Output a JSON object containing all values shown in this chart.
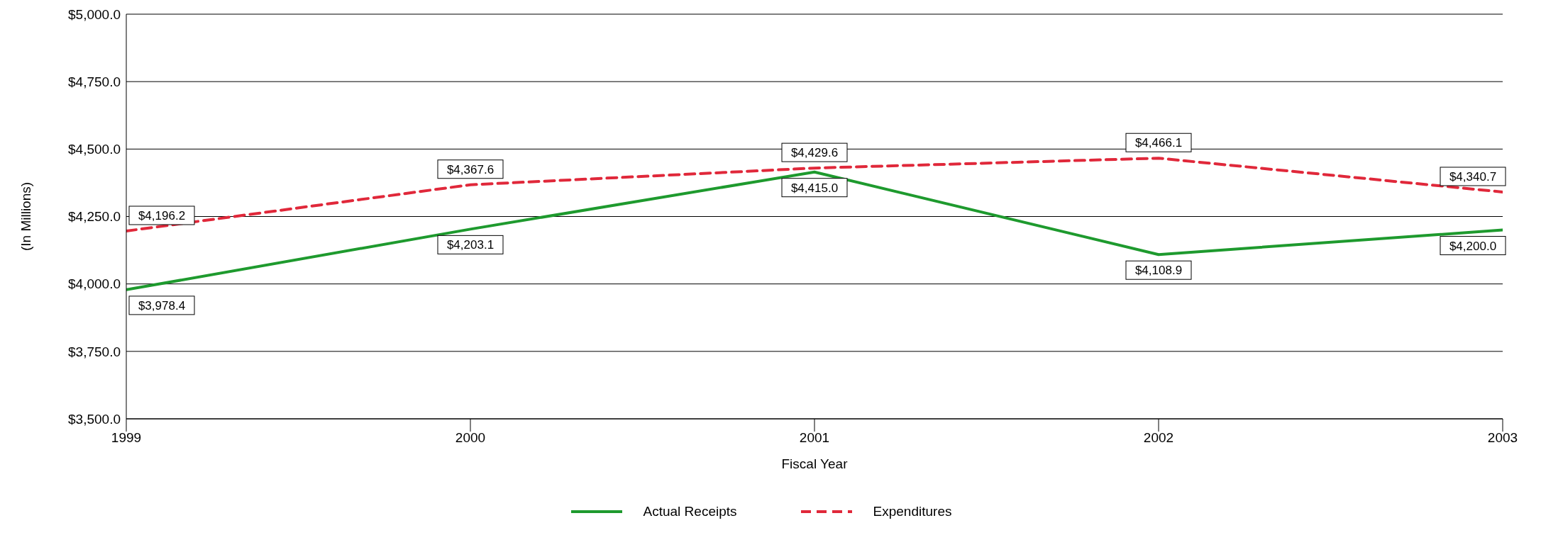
{
  "chart_data": {
    "type": "line",
    "xlabel": "Fiscal Year",
    "ylabel": "(In Millions)",
    "x": [
      1999,
      2000,
      2001,
      2002,
      2003
    ],
    "xlim": [
      1999,
      2003
    ],
    "xticks": [
      1999,
      2000,
      2001,
      2002,
      2003
    ],
    "ylim": [
      3500,
      5000
    ],
    "yticks": [
      {
        "value": 3500,
        "label": "$3,500.0"
      },
      {
        "value": 3750,
        "label": "$3,750.0"
      },
      {
        "value": 4000,
        "label": "$4,000.0"
      },
      {
        "value": 4250,
        "label": "$4,250.0"
      },
      {
        "value": 4500,
        "label": "$4,500.0"
      },
      {
        "value": 4750,
        "label": "$4,750.0"
      },
      {
        "value": 5000,
        "label": "$5,000.0"
      }
    ],
    "grid": "y",
    "legend": "bottom",
    "marker": "none",
    "series": [
      {
        "name": "Actual Receipts",
        "color": "#1e9a2e",
        "line_style": "solid",
        "values": [
          3978.4,
          4203.1,
          4415.0,
          4108.9,
          4200.0
        ],
        "value_labels": [
          "$3,978.4",
          "$4,203.1",
          "$4,415.0",
          "$4,108.9",
          "$4,200.0"
        ]
      },
      {
        "name": "Expenditures",
        "color": "#e0283a",
        "line_style": "dashed",
        "values": [
          4196.2,
          4367.6,
          4429.6,
          4466.1,
          4340.7
        ],
        "value_labels": [
          "$4,196.2",
          "$4,367.6",
          "$4,429.6",
          "$4,466.1",
          "$4,340.7"
        ]
      }
    ]
  }
}
